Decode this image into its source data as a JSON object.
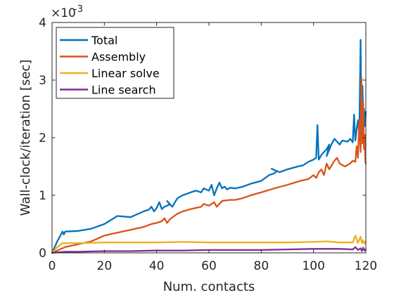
{
  "chart_data": {
    "type": "line",
    "title": "",
    "xlabel": "Num. contacts",
    "ylabel": "Wall-clock/iteration [sec]",
    "y_exponent_label": "×10",
    "y_exponent_power": "-3",
    "xlim": [
      0,
      120
    ],
    "ylim": [
      0,
      4
    ],
    "x_ticks": [
      0,
      20,
      40,
      60,
      80,
      100,
      120
    ],
    "y_ticks": [
      0,
      1,
      2,
      3,
      4
    ],
    "grid": false,
    "legend_position": "top-left",
    "series": [
      {
        "name": "Total",
        "color": "#0072BD",
        "points": [
          [
            0,
            0
          ],
          [
            2,
            0.2
          ],
          [
            4,
            0.37
          ],
          [
            4.5,
            0.32
          ],
          [
            5,
            0.37
          ],
          [
            10,
            0.38
          ],
          [
            15,
            0.42
          ],
          [
            20,
            0.5
          ],
          [
            25,
            0.64
          ],
          [
            30,
            0.62
          ],
          [
            35,
            0.72
          ],
          [
            37,
            0.75
          ],
          [
            38,
            0.8
          ],
          [
            39,
            0.72
          ],
          [
            40,
            0.78
          ],
          [
            41,
            0.88
          ],
          [
            42,
            0.76
          ],
          [
            43,
            0.8
          ],
          [
            44,
            0.82
          ],
          [
            45,
            0.84
          ],
          [
            44,
            0.9
          ],
          [
            46,
            0.8
          ],
          [
            47,
            0.88
          ],
          [
            48,
            0.95
          ],
          [
            50,
            1.0
          ],
          [
            53,
            1.05
          ],
          [
            55,
            1.08
          ],
          [
            57,
            1.05
          ],
          [
            58,
            1.12
          ],
          [
            60,
            1.08
          ],
          [
            61,
            1.18
          ],
          [
            62,
            1.0
          ],
          [
            63,
            1.12
          ],
          [
            64,
            1.22
          ],
          [
            65,
            1.12
          ],
          [
            66,
            1.15
          ],
          [
            67,
            1.1
          ],
          [
            68,
            1.13
          ],
          [
            70,
            1.12
          ],
          [
            73,
            1.15
          ],
          [
            76,
            1.2
          ],
          [
            80,
            1.25
          ],
          [
            83,
            1.35
          ],
          [
            85,
            1.38
          ],
          [
            86,
            1.42
          ],
          [
            84,
            1.46
          ],
          [
            87,
            1.4
          ],
          [
            90,
            1.45
          ],
          [
            94,
            1.5
          ],
          [
            96,
            1.52
          ],
          [
            98,
            1.58
          ],
          [
            100,
            1.62
          ],
          [
            101,
            1.65
          ],
          [
            101.5,
            2.22
          ],
          [
            102,
            1.62
          ],
          [
            103,
            1.7
          ],
          [
            104,
            1.75
          ],
          [
            105,
            1.8
          ],
          [
            106,
            1.88
          ],
          [
            105,
            1.68
          ],
          [
            107,
            1.9
          ],
          [
            108,
            1.98
          ],
          [
            110,
            1.88
          ],
          [
            111,
            1.95
          ],
          [
            113,
            1.93
          ],
          [
            114,
            1.98
          ],
          [
            115,
            1.92
          ],
          [
            115.5,
            2.4
          ],
          [
            116,
            1.95
          ],
          [
            116.5,
            2.15
          ],
          [
            117,
            2.3
          ],
          [
            117.5,
            2.05
          ],
          [
            118,
            3.7
          ],
          [
            118.3,
            2.1
          ],
          [
            118.7,
            2.9
          ],
          [
            119,
            2.35
          ],
          [
            119.3,
            2.5
          ],
          [
            119.6,
            2.2
          ],
          [
            119.8,
            2.3
          ],
          [
            120,
            2.45
          ]
        ]
      },
      {
        "name": "Assembly",
        "color": "#D95319",
        "points": [
          [
            0,
            0
          ],
          [
            5,
            0.1
          ],
          [
            10,
            0.15
          ],
          [
            15,
            0.2
          ],
          [
            20,
            0.3
          ],
          [
            25,
            0.35
          ],
          [
            30,
            0.4
          ],
          [
            35,
            0.45
          ],
          [
            38,
            0.5
          ],
          [
            40,
            0.52
          ],
          [
            42,
            0.55
          ],
          [
            43,
            0.6
          ],
          [
            44,
            0.52
          ],
          [
            45,
            0.58
          ],
          [
            47,
            0.65
          ],
          [
            48,
            0.68
          ],
          [
            50,
            0.72
          ],
          [
            53,
            0.76
          ],
          [
            55,
            0.78
          ],
          [
            57,
            0.8
          ],
          [
            58,
            0.85
          ],
          [
            60,
            0.82
          ],
          [
            62,
            0.88
          ],
          [
            63,
            0.8
          ],
          [
            65,
            0.9
          ],
          [
            68,
            0.92
          ],
          [
            70,
            0.92
          ],
          [
            73,
            0.95
          ],
          [
            76,
            1.0
          ],
          [
            80,
            1.05
          ],
          [
            85,
            1.12
          ],
          [
            90,
            1.18
          ],
          [
            95,
            1.25
          ],
          [
            98,
            1.28
          ],
          [
            100,
            1.35
          ],
          [
            101,
            1.3
          ],
          [
            102,
            1.4
          ],
          [
            103,
            1.45
          ],
          [
            104,
            1.35
          ],
          [
            105,
            1.55
          ],
          [
            106,
            1.45
          ],
          [
            108,
            1.6
          ],
          [
            109,
            1.65
          ],
          [
            110,
            1.55
          ],
          [
            112,
            1.5
          ],
          [
            114,
            1.55
          ],
          [
            115,
            1.6
          ],
          [
            116,
            1.58
          ],
          [
            116.5,
            1.85
          ],
          [
            117,
            1.65
          ],
          [
            117.5,
            2.3
          ],
          [
            118,
            1.75
          ],
          [
            118.3,
            3.05
          ],
          [
            118.7,
            1.9
          ],
          [
            119,
            2.6
          ],
          [
            119.3,
            1.8
          ],
          [
            119.6,
            2.05
          ],
          [
            119.8,
            1.6
          ],
          [
            120,
            1.55
          ]
        ]
      },
      {
        "name": "Linear solve",
        "color": "#EDB120",
        "points": [
          [
            0,
            0
          ],
          [
            2,
            0.1
          ],
          [
            4,
            0.17
          ],
          [
            8,
            0.17
          ],
          [
            12,
            0.17
          ],
          [
            20,
            0.18
          ],
          [
            30,
            0.18
          ],
          [
            40,
            0.18
          ],
          [
            50,
            0.19
          ],
          [
            60,
            0.18
          ],
          [
            70,
            0.18
          ],
          [
            80,
            0.18
          ],
          [
            90,
            0.18
          ],
          [
            100,
            0.19
          ],
          [
            105,
            0.2
          ],
          [
            110,
            0.18
          ],
          [
            115,
            0.18
          ],
          [
            116,
            0.3
          ],
          [
            117,
            0.17
          ],
          [
            118,
            0.28
          ],
          [
            118.5,
            0.17
          ],
          [
            119,
            0.22
          ],
          [
            119.5,
            0.16
          ],
          [
            120,
            0.2
          ]
        ]
      },
      {
        "name": "Line search",
        "color": "#7E2F8E",
        "points": [
          [
            0,
            0
          ],
          [
            5,
            0.02
          ],
          [
            10,
            0.02
          ],
          [
            20,
            0.03
          ],
          [
            30,
            0.03
          ],
          [
            40,
            0.04
          ],
          [
            50,
            0.04
          ],
          [
            60,
            0.05
          ],
          [
            70,
            0.05
          ],
          [
            80,
            0.05
          ],
          [
            90,
            0.06
          ],
          [
            100,
            0.07
          ],
          [
            105,
            0.07
          ],
          [
            110,
            0.07
          ],
          [
            115,
            0.06
          ],
          [
            116,
            0.1
          ],
          [
            117,
            0.05
          ],
          [
            118,
            0.08
          ],
          [
            118.5,
            0.03
          ],
          [
            119,
            0.09
          ],
          [
            119.5,
            0.04
          ],
          [
            120,
            0.06
          ]
        ]
      }
    ]
  }
}
